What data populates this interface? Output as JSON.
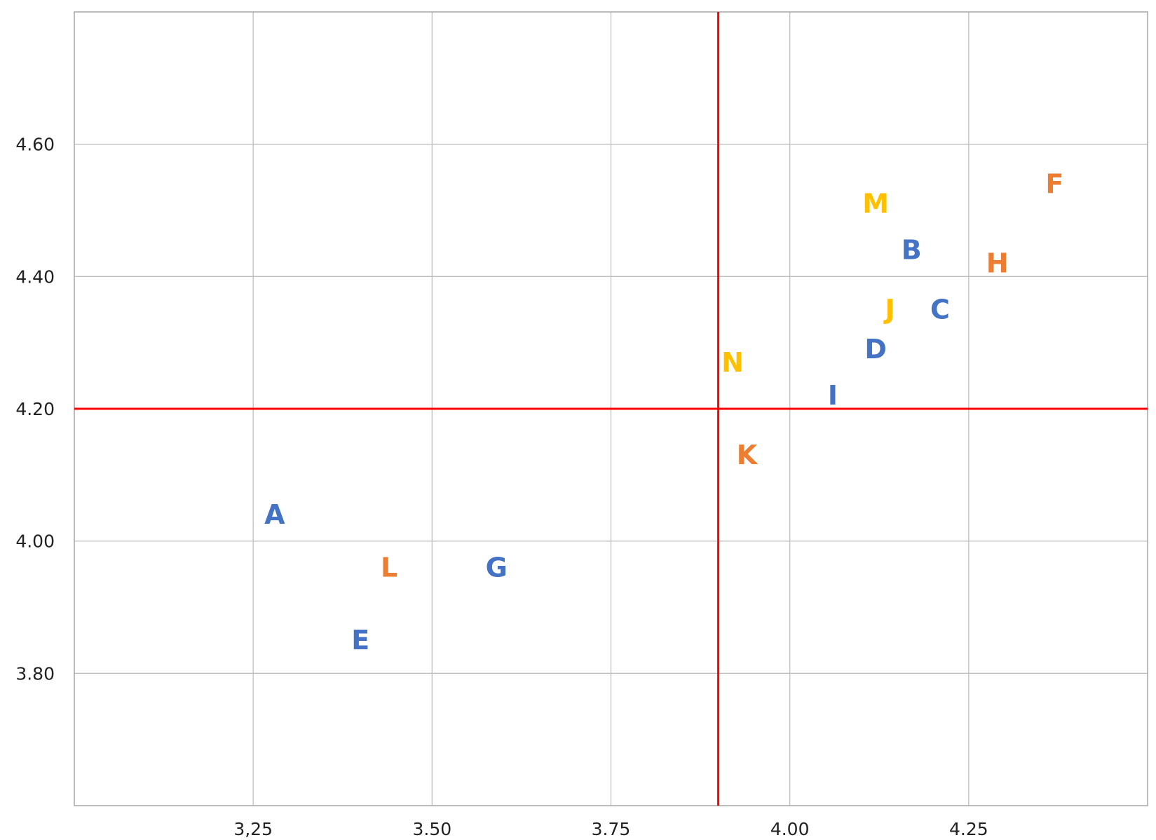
{
  "chart_data": {
    "type": "scatter",
    "title": "",
    "xlabel": "",
    "ylabel": "",
    "xlim": [
      3.0,
      4.5
    ],
    "ylim": [
      3.6,
      4.8
    ],
    "x_ticks": [
      {
        "value": 3.25,
        "label": "3,25"
      },
      {
        "value": 3.5,
        "label": "3.50"
      },
      {
        "value": 3.75,
        "label": "3.75"
      },
      {
        "value": 4.0,
        "label": "4.00"
      },
      {
        "value": 4.25,
        "label": "4.25"
      }
    ],
    "y_ticks": [
      {
        "value": 3.8,
        "label": "3.80"
      },
      {
        "value": 4.0,
        "label": "4.00"
      },
      {
        "value": 4.2,
        "label": "4.20"
      },
      {
        "value": 4.4,
        "label": "4.40"
      },
      {
        "value": 4.6,
        "label": "4.60"
      }
    ],
    "grid": true,
    "reference_lines": {
      "x": 3.9,
      "y": 4.2,
      "color": "#ff0000"
    },
    "colors": {
      "blue": "#4472c4",
      "orange": "#ed7d31",
      "yellow": "#ffc000",
      "grid": "#bfbfbf",
      "axis": "#a6a6a6"
    },
    "points": [
      {
        "label": "A",
        "x": 3.28,
        "y": 4.04,
        "color": "blue"
      },
      {
        "label": "B",
        "x": 4.17,
        "y": 4.44,
        "color": "blue"
      },
      {
        "label": "C",
        "x": 4.21,
        "y": 4.35,
        "color": "blue"
      },
      {
        "label": "D",
        "x": 4.12,
        "y": 4.29,
        "color": "blue"
      },
      {
        "label": "E",
        "x": 3.4,
        "y": 3.85,
        "color": "blue"
      },
      {
        "label": "F",
        "x": 4.37,
        "y": 4.54,
        "color": "orange"
      },
      {
        "label": "G",
        "x": 3.59,
        "y": 3.96,
        "color": "blue"
      },
      {
        "label": "H",
        "x": 4.29,
        "y": 4.42,
        "color": "orange"
      },
      {
        "label": "I",
        "x": 4.06,
        "y": 4.22,
        "color": "blue"
      },
      {
        "label": "J",
        "x": 4.14,
        "y": 4.35,
        "color": "yellow"
      },
      {
        "label": "K",
        "x": 3.94,
        "y": 4.13,
        "color": "orange"
      },
      {
        "label": "L",
        "x": 3.44,
        "y": 3.96,
        "color": "orange"
      },
      {
        "label": "M",
        "x": 4.12,
        "y": 4.51,
        "color": "yellow"
      },
      {
        "label": "N",
        "x": 3.92,
        "y": 4.27,
        "color": "yellow"
      }
    ]
  }
}
